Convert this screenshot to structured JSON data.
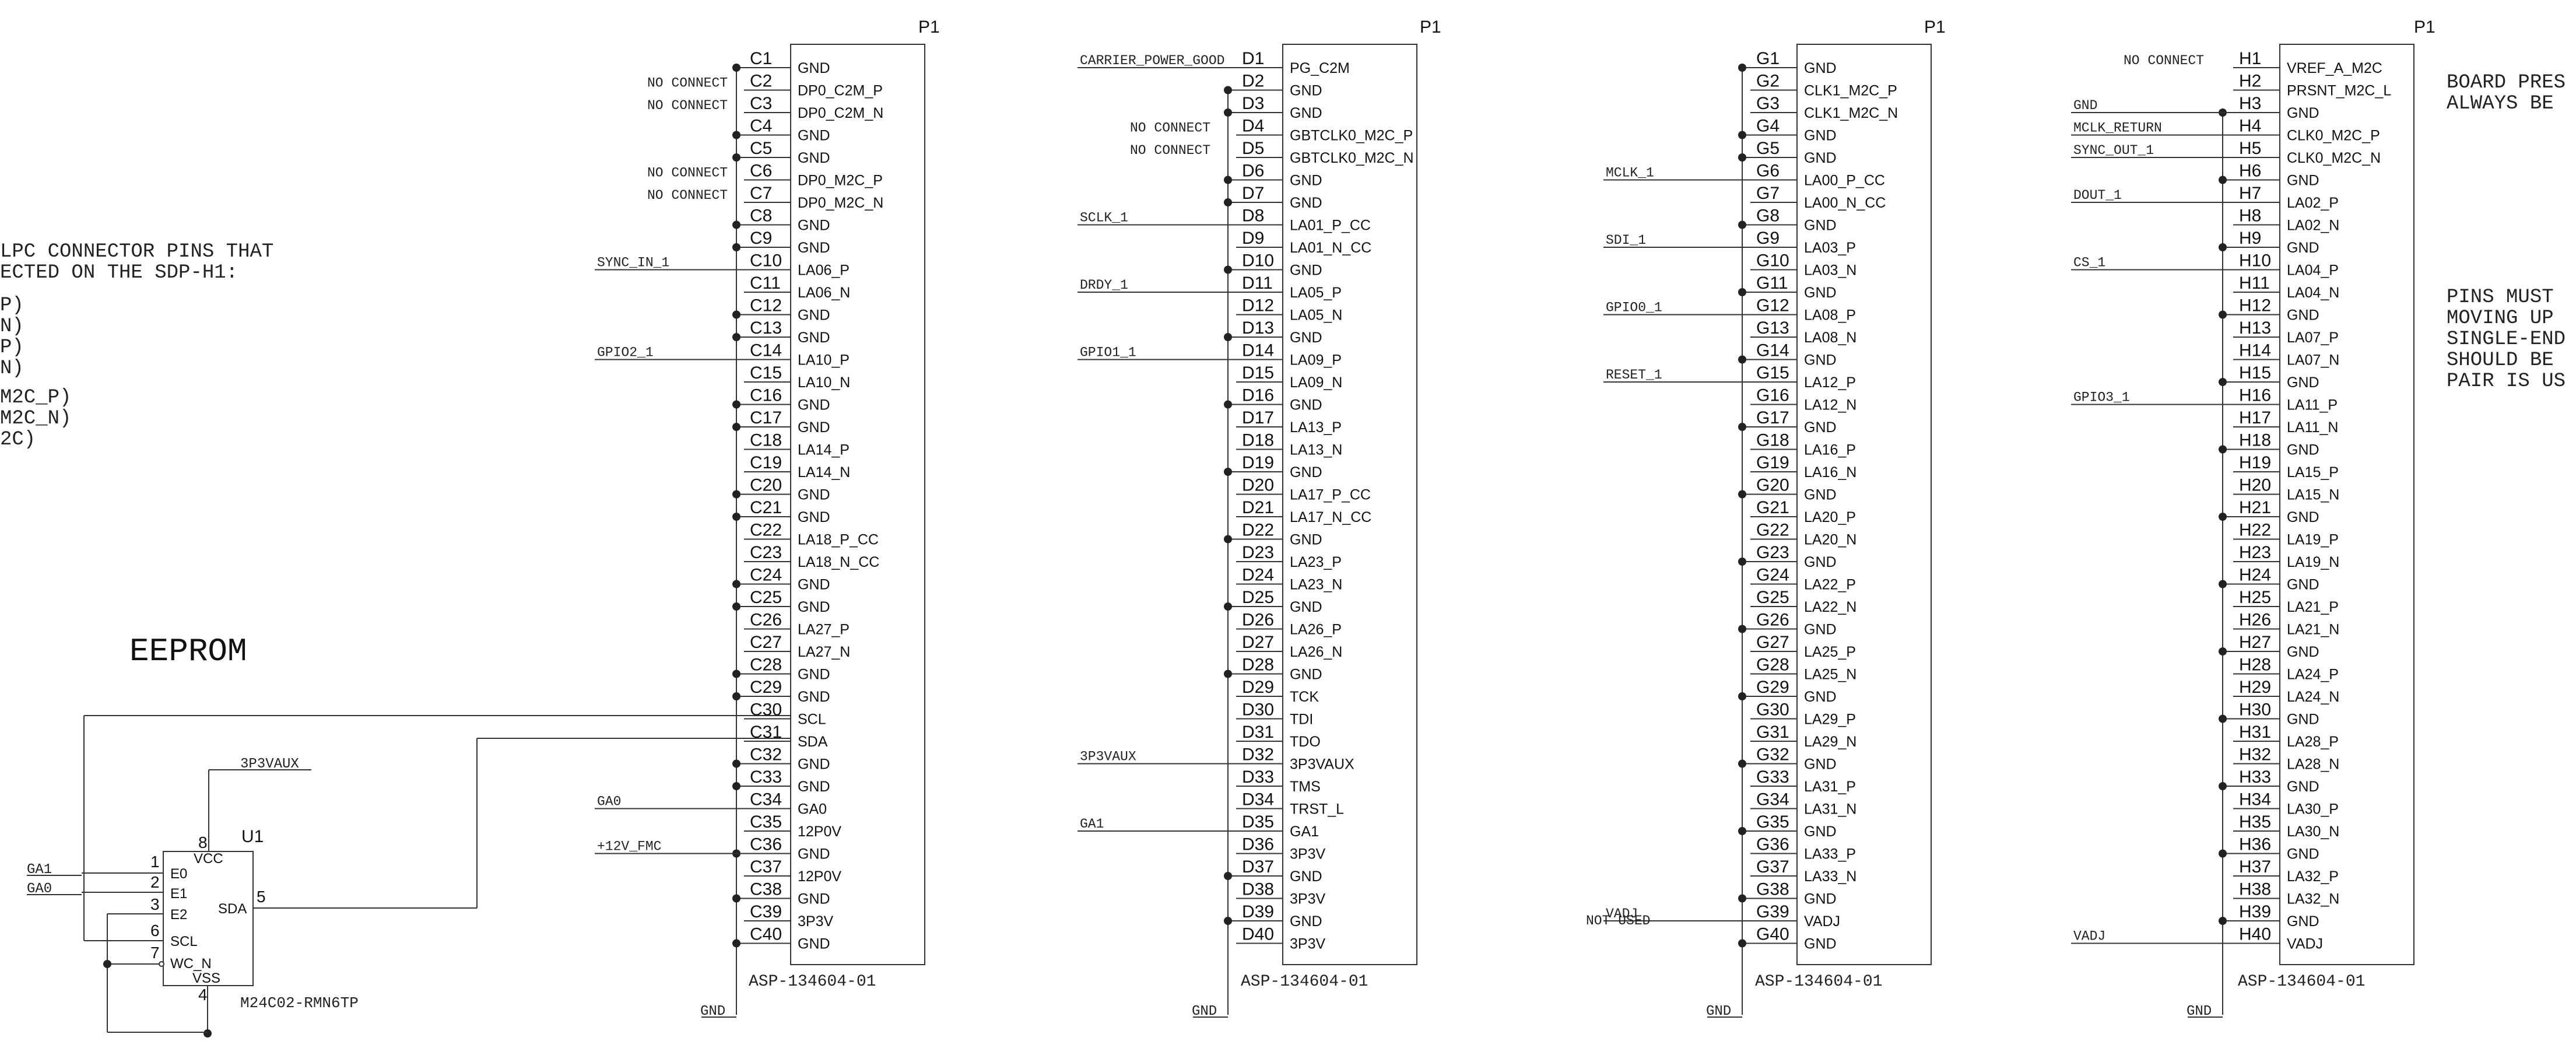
{
  "notes": {
    "left_lines": [
      "LPC CONNECTOR PINS THAT",
      "ECTED ON THE SDP-H1:"
    ],
    "left_list": [
      "P)",
      "N)",
      "P)",
      "N)",
      "M2C_P)",
      "M2C_N)",
      "2C)"
    ],
    "right_top": [
      "BOARD PRES",
      "ALWAYS BE"
    ],
    "right_bottom": [
      "PINS MUST",
      "MOVING UP",
      "SINGLE-END",
      "SHOULD BE",
      "PAIR IS US"
    ]
  },
  "eeprom": {
    "title": "EEPROM",
    "refdes": "U1",
    "part": "M24C02-RMN6TP",
    "pins": [
      {
        "num": "1",
        "name": "E0",
        "net": "GA1"
      },
      {
        "num": "2",
        "name": "E1",
        "net": "GA0"
      },
      {
        "num": "3",
        "name": "E2",
        "net": ""
      },
      {
        "num": "6",
        "name": "SCL",
        "net": ""
      },
      {
        "num": "7",
        "name": "WC_N",
        "net": ""
      }
    ],
    "vcc": {
      "num": "8",
      "name": "VCC",
      "net": "3P3VAUX"
    },
    "sda": {
      "num": "5",
      "name": "SDA"
    },
    "vss": {
      "num": "4",
      "name": "VSS"
    }
  },
  "connectors": [
    {
      "ref": "P1",
      "part": "ASP-134604-01",
      "row": "C",
      "pins": [
        "GND",
        "DP0_C2M_P",
        "DP0_C2M_N",
        "GND",
        "GND",
        "DP0_M2C_P",
        "DP0_M2C_N",
        "GND",
        "GND",
        "LA06_P",
        "LA06_N",
        "GND",
        "GND",
        "LA10_P",
        "LA10_N",
        "GND",
        "GND",
        "LA14_P",
        "LA14_N",
        "GND",
        "GND",
        "LA18_P_CC",
        "LA18_N_CC",
        "GND",
        "GND",
        "LA27_P",
        "LA27_N",
        "GND",
        "GND",
        "SCL",
        "SDA",
        "GND",
        "GND",
        "GA0",
        "12P0V",
        "GND",
        "12P0V",
        "GND",
        "3P3V",
        "GND"
      ],
      "nets": [
        {
          "pin": 2,
          "text": "NO CONNECT"
        },
        {
          "pin": 3,
          "text": "NO CONNECT"
        },
        {
          "pin": 6,
          "text": "NO CONNECT"
        },
        {
          "pin": 7,
          "text": "NO CONNECT"
        },
        {
          "pin": 10,
          "text": "SYNC_IN_1"
        },
        {
          "pin": 14,
          "text": "GPIO2_1"
        },
        {
          "pin": 34,
          "text": "GA0"
        },
        {
          "pin": 36,
          "text": "+12V_FMC"
        }
      ],
      "gnd": "GND"
    },
    {
      "ref": "P1",
      "part": "ASP-134604-01",
      "row": "D",
      "pins": [
        "PG_C2M",
        "GND",
        "GND",
        "GBTCLK0_M2C_P",
        "GBTCLK0_M2C_N",
        "GND",
        "GND",
        "LA01_P_CC",
        "LA01_N_CC",
        "GND",
        "LA05_P",
        "LA05_N",
        "GND",
        "LA09_P",
        "LA09_N",
        "GND",
        "LA13_P",
        "LA13_N",
        "GND",
        "LA17_P_CC",
        "LA17_N_CC",
        "GND",
        "LA23_P",
        "LA23_N",
        "GND",
        "LA26_P",
        "LA26_N",
        "GND",
        "TCK",
        "TDI",
        "TDO",
        "3P3VAUX",
        "TMS",
        "TRST_L",
        "GA1",
        "3P3V",
        "GND",
        "3P3V",
        "GND",
        "3P3V"
      ],
      "nets": [
        {
          "pin": 1,
          "text": "CARRIER_POWER_GOOD"
        },
        {
          "pin": 4,
          "text": "NO CONNECT"
        },
        {
          "pin": 5,
          "text": "NO CONNECT"
        },
        {
          "pin": 8,
          "text": "SCLK_1"
        },
        {
          "pin": 11,
          "text": "DRDY_1"
        },
        {
          "pin": 14,
          "text": "GPIO1_1"
        },
        {
          "pin": 32,
          "text": "3P3VAUX"
        },
        {
          "pin": 35,
          "text": "GA1"
        }
      ],
      "gnd": "GND"
    },
    {
      "ref": "P1",
      "part": "ASP-134604-01",
      "row": "G",
      "pins": [
        "GND",
        "CLK1_M2C_P",
        "CLK1_M2C_N",
        "GND",
        "GND",
        "LA00_P_CC",
        "LA00_N_CC",
        "GND",
        "LA03_P",
        "LA03_N",
        "GND",
        "LA08_P",
        "LA08_N",
        "GND",
        "LA12_P",
        "LA12_N",
        "GND",
        "LA16_P",
        "LA16_N",
        "GND",
        "LA20_P",
        "LA20_N",
        "GND",
        "LA22_P",
        "LA22_N",
        "GND",
        "LA25_P",
        "LA25_N",
        "GND",
        "LA29_P",
        "LA29_N",
        "GND",
        "LA31_P",
        "LA31_N",
        "GND",
        "LA33_P",
        "LA33_N",
        "GND",
        "VADJ",
        "GND"
      ],
      "nets": [
        {
          "pin": 6,
          "text": "MCLK_1"
        },
        {
          "pin": 9,
          "text": "SDI_1"
        },
        {
          "pin": 12,
          "text": "GPIO0_1"
        },
        {
          "pin": 15,
          "text": "RESET_1"
        },
        {
          "pin": 39,
          "text": "VADJ"
        }
      ],
      "extra": "NOT USED",
      "gnd": "GND"
    },
    {
      "ref": "P1",
      "part": "ASP-134604-01",
      "row": "H",
      "pins": [
        "VREF_A_M2C",
        "PRSNT_M2C_L",
        "GND",
        "CLK0_M2C_P",
        "CLK0_M2C_N",
        "GND",
        "LA02_P",
        "LA02_N",
        "GND",
        "LA04_P",
        "LA04_N",
        "GND",
        "LA07_P",
        "LA07_N",
        "GND",
        "LA11_P",
        "LA11_N",
        "GND",
        "LA15_P",
        "LA15_N",
        "GND",
        "LA19_P",
        "LA19_N",
        "GND",
        "LA21_P",
        "LA21_N",
        "GND",
        "LA24_P",
        "LA24_N",
        "GND",
        "LA28_P",
        "LA28_N",
        "GND",
        "LA30_P",
        "LA30_N",
        "GND",
        "LA32_P",
        "LA32_N",
        "GND",
        "VADJ"
      ],
      "nets": [
        {
          "pin": 1,
          "text": "NO CONNECT"
        },
        {
          "pin": 3,
          "text": "GND"
        },
        {
          "pin": 4,
          "text": "MCLK_RETURN"
        },
        {
          "pin": 5,
          "text": "SYNC_OUT_1"
        },
        {
          "pin": 7,
          "text": "DOUT_1"
        },
        {
          "pin": 10,
          "text": "CS_1"
        },
        {
          "pin": 16,
          "text": "GPIO3_1"
        },
        {
          "pin": 40,
          "text": "VADJ"
        }
      ],
      "gnd": "GND"
    }
  ]
}
